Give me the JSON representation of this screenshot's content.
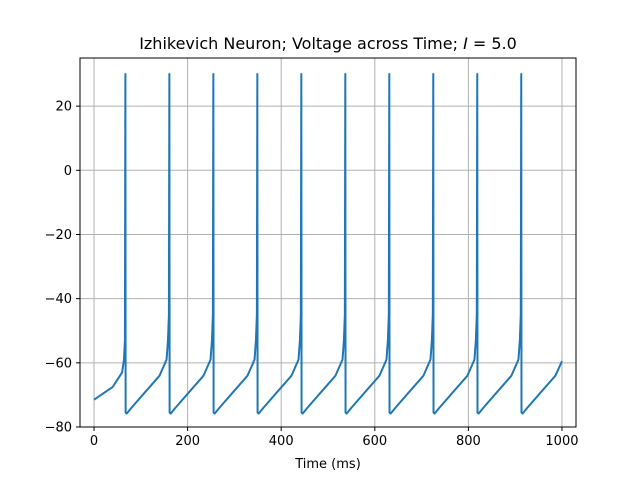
{
  "chart_data": {
    "type": "line",
    "title": "Izhikevich Neuron; Voltage across Time; I = 5.0",
    "title_parts": {
      "prefix": "Izhikevich Neuron; Voltage across Time; ",
      "var": "I",
      "suffix": " = 5.0"
    },
    "xlabel": "Time (ms)",
    "ylabel": "",
    "xlim": [
      -30,
      1030
    ],
    "ylim": [
      -80,
      35
    ],
    "xticks": [
      0,
      200,
      400,
      600,
      800,
      1000
    ],
    "yticks": [
      -80,
      -60,
      -40,
      -20,
      0,
      20
    ],
    "xtick_labels": [
      "0",
      "200",
      "400",
      "600",
      "800",
      "1000"
    ],
    "ytick_labels": [
      "−80",
      "−60",
      "−40",
      "−20",
      "0",
      "20"
    ],
    "grid": true,
    "line_color": "#1f77b4",
    "series": [
      {
        "x": [
          0,
          40,
          60,
          64,
          66,
          67,
          67.5,
          70,
          80,
          110,
          140,
          155,
          158,
          160,
          161,
          161.5,
          164,
          174,
          204,
          234,
          249,
          252,
          254,
          255,
          255.5,
          258,
          268,
          298,
          328,
          343,
          346,
          348,
          349,
          349.5,
          352,
          362,
          392,
          422,
          437,
          440,
          442,
          443,
          443.5,
          446,
          456,
          486,
          516,
          531,
          534,
          536,
          537,
          537.5,
          540,
          550,
          580,
          610,
          625,
          628,
          630,
          631,
          631.5,
          634,
          644,
          674,
          704,
          719,
          722,
          724,
          725,
          725.5,
          728,
          738,
          768,
          798,
          813,
          816,
          818,
          819,
          819.5,
          822,
          832,
          862,
          892,
          907,
          910,
          912,
          913,
          913.5,
          916,
          926,
          956,
          986,
          1000
        ],
        "y": [
          -71.5,
          -67.5,
          -63,
          -59,
          -53,
          30,
          -75.5,
          -75.8,
          -74,
          -69,
          -64,
          -59,
          -53,
          -45,
          30,
          -75.5,
          -75.8,
          -74,
          -69,
          -64,
          -59,
          -53,
          -45,
          30,
          -75.5,
          -75.8,
          -74,
          -69,
          -64,
          -59,
          -53,
          -45,
          30,
          -75.5,
          -75.8,
          -74,
          -69,
          -64,
          -59,
          -53,
          -45,
          30,
          -75.5,
          -75.8,
          -74,
          -69,
          -64,
          -59,
          -53,
          -45,
          30,
          -75.5,
          -75.8,
          -74,
          -69,
          -64,
          -59,
          -53,
          -45,
          30,
          -75.5,
          -75.8,
          -74,
          -69,
          -64,
          -59,
          -53,
          -45,
          30,
          -75.5,
          -75.8,
          -74,
          -69,
          -64,
          -59,
          -53,
          -45,
          30,
          -75.5,
          -75.8,
          -74,
          -69,
          -64,
          -59,
          -53,
          -45,
          30,
          -75.5,
          -75.8,
          -74,
          -69,
          -64,
          -59.5
        ]
      }
    ]
  }
}
